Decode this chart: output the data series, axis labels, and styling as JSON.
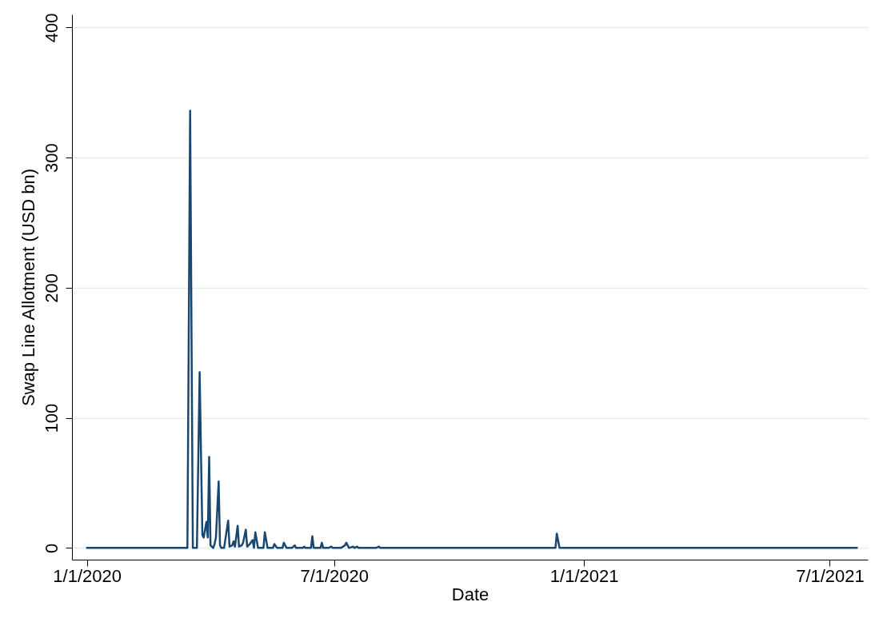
{
  "chart_data": {
    "type": "line",
    "xlabel": "Date",
    "ylabel": "Swap Line Allotment (USD bn)",
    "xlim": [
      "2019-12-21",
      "2021-07-29"
    ],
    "ylim": [
      -9,
      410
    ],
    "xticks": [
      {
        "value": "2020-01-01",
        "label": "1/1/2020"
      },
      {
        "value": "2020-07-01",
        "label": "7/1/2020"
      },
      {
        "value": "2021-01-01",
        "label": "1/1/2021"
      },
      {
        "value": "2021-07-01",
        "label": "7/1/2021"
      }
    ],
    "yticks": [
      0,
      100,
      200,
      300,
      400
    ],
    "grid": "y",
    "marker": "none",
    "line_style": "solid",
    "series": [
      {
        "color": "#1a476f",
        "x": [
          "2020-01-01",
          "2020-03-15",
          "2020-03-17",
          "2020-03-19",
          "2020-03-22",
          "2020-03-24",
          "2020-03-26",
          "2020-03-27",
          "2020-03-29",
          "2020-03-30",
          "2020-03-31",
          "2020-04-01",
          "2020-04-03",
          "2020-04-04",
          "2020-04-05",
          "2020-04-07",
          "2020-04-08",
          "2020-04-09",
          "2020-04-11",
          "2020-04-14",
          "2020-04-15",
          "2020-04-17",
          "2020-04-18",
          "2020-04-19",
          "2020-04-21",
          "2020-04-22",
          "2020-04-24",
          "2020-04-25",
          "2020-04-27",
          "2020-04-28",
          "2020-04-30",
          "2020-05-02",
          "2020-05-03",
          "2020-05-04",
          "2020-05-06",
          "2020-05-10",
          "2020-05-11",
          "2020-05-13",
          "2020-05-17",
          "2020-05-18",
          "2020-05-20",
          "2020-05-24",
          "2020-05-25",
          "2020-05-27",
          "2020-05-31",
          "2020-06-02",
          "2020-06-03",
          "2020-06-08",
          "2020-06-09",
          "2020-06-10",
          "2020-06-14",
          "2020-06-15",
          "2020-06-16",
          "2020-06-21",
          "2020-06-22",
          "2020-06-23",
          "2020-06-27",
          "2020-06-29",
          "2020-06-30",
          "2020-07-06",
          "2020-07-09",
          "2020-07-10",
          "2020-07-12",
          "2020-07-15",
          "2020-07-16",
          "2020-07-18",
          "2020-07-19",
          "2020-08-01",
          "2020-08-03",
          "2020-08-04",
          "2020-12-11",
          "2020-12-12",
          "2020-12-14",
          "2021-07-21"
        ],
        "values": [
          0,
          0,
          336,
          0,
          0,
          135,
          10,
          8,
          20,
          8,
          70,
          2,
          0,
          3,
          8,
          51,
          2,
          0,
          0,
          21,
          1,
          2,
          5,
          1,
          17,
          1,
          2,
          4,
          14,
          1,
          3,
          6,
          0,
          12,
          0,
          0,
          12,
          0,
          0,
          3,
          0,
          0,
          4,
          0,
          0,
          2,
          0,
          0,
          1,
          0,
          0,
          9,
          0,
          0,
          4,
          0,
          0,
          1,
          0,
          0,
          2,
          4,
          0,
          1,
          0,
          1,
          0,
          0,
          1,
          0,
          0,
          11,
          0,
          0
        ]
      }
    ]
  }
}
